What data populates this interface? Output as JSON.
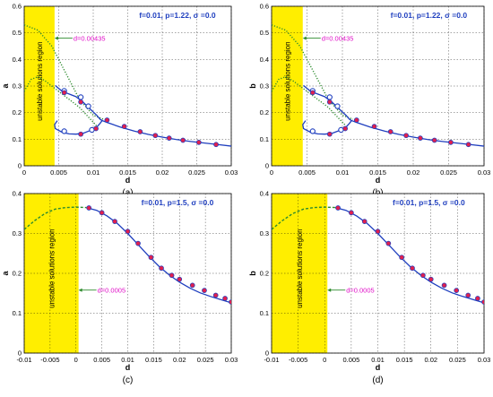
{
  "chart_data": [
    {
      "id": "a",
      "type": "line",
      "panel_label": "(a)",
      "xlabel": "d",
      "ylabel": "a",
      "xlim": [
        0,
        0.03
      ],
      "ylim": [
        0,
        0.6
      ],
      "xticks": [
        "0",
        "0.005",
        "0.01",
        "0.015",
        "0.02",
        "0.025",
        "0.03"
      ],
      "yticks": [
        "0",
        "0.1",
        "0.2",
        "0.3",
        "0.4",
        "0.5",
        "0.6"
      ],
      "grid": true,
      "params_label": "f=0.01, p=1.22, σ =0.0",
      "region_label": "unstable solutions region",
      "unstable_region_x": [
        0,
        0.0044
      ],
      "marker_label": "d=0.00435",
      "marker_at": [
        0.0044,
        0.48
      ],
      "series": [
        {
          "style": "dotted",
          "color": "#2e8b2e",
          "x": [
            0,
            0.002,
            0.004,
            0.006,
            0.008,
            0.01,
            0.0115
          ],
          "y": [
            0.53,
            0.51,
            0.45,
            0.35,
            0.25,
            0.19,
            0.175
          ]
        },
        {
          "style": "dotted",
          "color": "#2e8b2e",
          "x": [
            0,
            0.001,
            0.002,
            0.003,
            0.0045,
            0.006,
            0.008,
            0.0105
          ],
          "y": [
            0.28,
            0.325,
            0.335,
            0.32,
            0.29,
            0.26,
            0.22,
            0.15
          ]
        },
        {
          "style": "solid",
          "color": "#1f3fbf",
          "x": [
            0.0045,
            0.0055,
            0.0065,
            0.0075,
            0.0085,
            0.0095,
            0.0105,
            0.011,
            0.0113,
            0.011,
            0.0105,
            0.0095,
            0.0085,
            0.0075,
            0.0065,
            0.0055,
            0.0045,
            0.0044,
            0.0048
          ],
          "y": [
            0.302,
            0.28,
            0.27,
            0.26,
            0.24,
            0.215,
            0.19,
            0.175,
            0.17,
            0.16,
            0.145,
            0.132,
            0.122,
            0.119,
            0.12,
            0.126,
            0.14,
            0.155,
            0.17
          ]
        },
        {
          "style": "solid",
          "color": "#1f3fbf",
          "x": [
            0.0113,
            0.012,
            0.014,
            0.016,
            0.018,
            0.02,
            0.022,
            0.024,
            0.026,
            0.028,
            0.03
          ],
          "y": [
            0.17,
            0.163,
            0.145,
            0.13,
            0.118,
            0.108,
            0.099,
            0.092,
            0.086,
            0.08,
            0.074
          ]
        }
      ],
      "points_red": [
        [
          0.0058,
          0.275
        ],
        [
          0.0082,
          0.24
        ],
        [
          0.0082,
          0.119
        ],
        [
          0.0104,
          0.14
        ],
        [
          0.012,
          0.172
        ],
        [
          0.0145,
          0.148
        ],
        [
          0.0168,
          0.128
        ],
        [
          0.019,
          0.114
        ],
        [
          0.021,
          0.104
        ],
        [
          0.023,
          0.096
        ],
        [
          0.0253,
          0.088
        ],
        [
          0.0278,
          0.08
        ]
      ],
      "points_blue_open": [
        [
          0.0058,
          0.282
        ],
        [
          0.0082,
          0.258
        ],
        [
          0.0093,
          0.224
        ],
        [
          0.0058,
          0.13
        ],
        [
          0.0098,
          0.135
        ]
      ]
    },
    {
      "id": "b",
      "type": "line",
      "panel_label": "(b)",
      "xlabel": "d",
      "ylabel": "b",
      "xlim": [
        0,
        0.03
      ],
      "ylim": [
        0,
        0.6
      ],
      "xticks": [
        "0",
        "0.005",
        "0.01",
        "0.015",
        "0.02",
        "0.025",
        "0.03"
      ],
      "yticks": [
        "0",
        "0.1",
        "0.2",
        "0.3",
        "0.4",
        "0.5",
        "0.6"
      ],
      "grid": true,
      "params_label": "f=0.01, p=1.22, σ =0.0",
      "region_label": "unstable solutions region",
      "unstable_region_x": [
        0,
        0.0044
      ],
      "marker_label": "d=0.00435",
      "marker_at": [
        0.0044,
        0.48
      ],
      "series": [
        {
          "style": "dotted",
          "color": "#2e8b2e",
          "x": [
            0,
            0.002,
            0.004,
            0.006,
            0.008,
            0.01,
            0.0115
          ],
          "y": [
            0.53,
            0.51,
            0.45,
            0.35,
            0.25,
            0.19,
            0.175
          ]
        },
        {
          "style": "dotted",
          "color": "#2e8b2e",
          "x": [
            0,
            0.001,
            0.002,
            0.003,
            0.0045,
            0.006,
            0.008,
            0.0105
          ],
          "y": [
            0.28,
            0.325,
            0.335,
            0.32,
            0.29,
            0.26,
            0.22,
            0.15
          ]
        },
        {
          "style": "solid",
          "color": "#1f3fbf",
          "x": [
            0.0045,
            0.0055,
            0.0065,
            0.0075,
            0.0085,
            0.0095,
            0.0105,
            0.011,
            0.0113,
            0.011,
            0.0105,
            0.0095,
            0.0085,
            0.0075,
            0.0065,
            0.0055,
            0.0045,
            0.0044,
            0.0048
          ],
          "y": [
            0.302,
            0.28,
            0.27,
            0.26,
            0.24,
            0.215,
            0.19,
            0.175,
            0.17,
            0.16,
            0.145,
            0.132,
            0.122,
            0.119,
            0.12,
            0.126,
            0.14,
            0.155,
            0.17
          ]
        },
        {
          "style": "solid",
          "color": "#1f3fbf",
          "x": [
            0.0113,
            0.012,
            0.014,
            0.016,
            0.018,
            0.02,
            0.022,
            0.024,
            0.026,
            0.028,
            0.03
          ],
          "y": [
            0.17,
            0.163,
            0.145,
            0.13,
            0.118,
            0.108,
            0.099,
            0.092,
            0.086,
            0.08,
            0.074
          ]
        }
      ],
      "points_red": [
        [
          0.0058,
          0.275
        ],
        [
          0.0082,
          0.24
        ],
        [
          0.0082,
          0.119
        ],
        [
          0.0104,
          0.14
        ],
        [
          0.012,
          0.172
        ],
        [
          0.0145,
          0.148
        ],
        [
          0.0168,
          0.128
        ],
        [
          0.019,
          0.114
        ],
        [
          0.021,
          0.104
        ],
        [
          0.023,
          0.096
        ],
        [
          0.0253,
          0.088
        ],
        [
          0.0278,
          0.08
        ]
      ],
      "points_blue_open": [
        [
          0.0058,
          0.282
        ],
        [
          0.0082,
          0.258
        ],
        [
          0.0093,
          0.224
        ],
        [
          0.0058,
          0.13
        ],
        [
          0.0098,
          0.135
        ]
      ]
    },
    {
      "id": "c",
      "type": "line",
      "panel_label": "(c)",
      "xlabel": "d",
      "ylabel": "a",
      "xlim": [
        -0.01,
        0.03
      ],
      "ylim": [
        0,
        0.4
      ],
      "xticks": [
        "-0.01",
        "-0.005",
        "0",
        "0.005",
        "0.01",
        "0.015",
        "0.02",
        "0.025",
        "0.03"
      ],
      "yticks": [
        "0",
        "0.1",
        "0.2",
        "0.3",
        "0.4"
      ],
      "grid": true,
      "params_label": "f=0.01, p=1.5, σ =0.0",
      "region_label": "unstable solutions region",
      "unstable_region_x": [
        -0.01,
        0.0005
      ],
      "marker_label": "d=0.0005",
      "marker_at": [
        0.0005,
        0.158
      ],
      "series": [
        {
          "style": "dashed",
          "color": "#2e8b2e",
          "x": [
            -0.01,
            -0.008,
            -0.006,
            -0.004,
            -0.002,
            0,
            0.002
          ],
          "y": [
            0.31,
            0.332,
            0.35,
            0.361,
            0.365,
            0.366,
            0.365
          ]
        },
        {
          "style": "solid",
          "color": "#1f3fbf",
          "x": [
            0.002,
            0.004,
            0.006,
            0.008,
            0.01,
            0.012,
            0.014,
            0.016,
            0.018,
            0.02,
            0.022,
            0.024,
            0.026,
            0.028,
            0.03
          ],
          "y": [
            0.365,
            0.358,
            0.344,
            0.325,
            0.3,
            0.272,
            0.244,
            0.218,
            0.196,
            0.178,
            0.163,
            0.151,
            0.142,
            0.134,
            0.126
          ]
        }
      ],
      "points_red": [
        [
          0.0025,
          0.364
        ],
        [
          0.005,
          0.352
        ],
        [
          0.0075,
          0.33
        ],
        [
          0.01,
          0.305
        ],
        [
          0.012,
          0.275
        ],
        [
          0.0145,
          0.24
        ],
        [
          0.0165,
          0.213
        ],
        [
          0.0185,
          0.195
        ],
        [
          0.02,
          0.185
        ],
        [
          0.0225,
          0.17
        ],
        [
          0.0248,
          0.157
        ],
        [
          0.027,
          0.145
        ],
        [
          0.0288,
          0.137
        ],
        [
          0.03,
          0.128
        ]
      ],
      "points_blue_open": []
    },
    {
      "id": "d",
      "type": "line",
      "panel_label": "(d)",
      "xlabel": "d",
      "ylabel": "b",
      "xlim": [
        -0.01,
        0.03
      ],
      "ylim": [
        0,
        0.4
      ],
      "xticks": [
        "-0.01",
        "-0.005",
        "0",
        "0.005",
        "0.01",
        "0.015",
        "0.02",
        "0.025",
        "0.03"
      ],
      "yticks": [
        "0",
        "0.1",
        "0.2",
        "0.3",
        "0.4"
      ],
      "grid": true,
      "params_label": "f=0.01, p=1.5, σ =0.0",
      "region_label": "unstable solutions region",
      "unstable_region_x": [
        -0.01,
        0.0005
      ],
      "marker_label": "d=0.0005",
      "marker_at": [
        0.0005,
        0.158
      ],
      "series": [
        {
          "style": "dashed",
          "color": "#2e8b2e",
          "x": [
            -0.01,
            -0.008,
            -0.006,
            -0.004,
            -0.002,
            0,
            0.002
          ],
          "y": [
            0.31,
            0.332,
            0.35,
            0.361,
            0.365,
            0.366,
            0.365
          ]
        },
        {
          "style": "solid",
          "color": "#1f3fbf",
          "x": [
            0.002,
            0.004,
            0.006,
            0.008,
            0.01,
            0.012,
            0.014,
            0.016,
            0.018,
            0.02,
            0.022,
            0.024,
            0.026,
            0.028,
            0.03
          ],
          "y": [
            0.365,
            0.358,
            0.344,
            0.325,
            0.3,
            0.272,
            0.244,
            0.218,
            0.196,
            0.178,
            0.163,
            0.151,
            0.142,
            0.134,
            0.126
          ]
        }
      ],
      "points_red": [
        [
          0.0025,
          0.364
        ],
        [
          0.005,
          0.352
        ],
        [
          0.0075,
          0.33
        ],
        [
          0.01,
          0.305
        ],
        [
          0.012,
          0.275
        ],
        [
          0.0145,
          0.24
        ],
        [
          0.0165,
          0.213
        ],
        [
          0.0185,
          0.195
        ],
        [
          0.02,
          0.185
        ],
        [
          0.0225,
          0.17
        ],
        [
          0.0248,
          0.157
        ],
        [
          0.027,
          0.145
        ],
        [
          0.0288,
          0.137
        ],
        [
          0.03,
          0.128
        ]
      ],
      "points_blue_open": []
    }
  ],
  "colors": {
    "region": "#ffee00",
    "params_text": "#1f3fbf",
    "marker_text": "#e010c8",
    "marker_arrow": "#2e8b2e",
    "point_red": "#e0204e",
    "point_blue": "#1f3fbf"
  }
}
